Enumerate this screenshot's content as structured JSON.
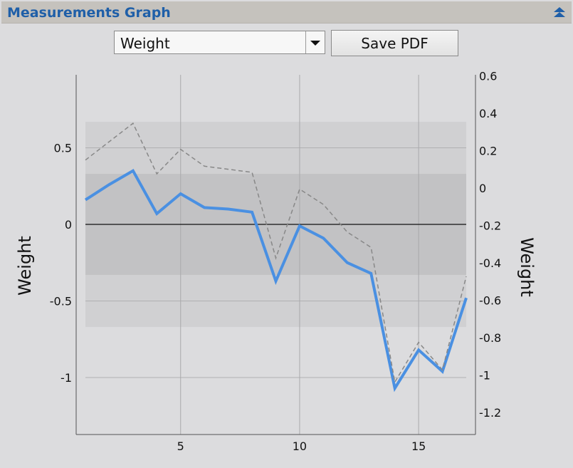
{
  "header": {
    "title": "Measurements Graph",
    "collapse_icon": "double-chevron-up-icon"
  },
  "controls": {
    "selected": "Weight",
    "dropdown_icon": "triangle-down-icon",
    "save_label": "Save PDF"
  },
  "colors": {
    "accent": "#1f5fa8",
    "series": "#4a90e2",
    "dashed": "#888888"
  },
  "chart_data": {
    "type": "line",
    "left_axis": {
      "label": "Weight",
      "ticks": [
        0.5,
        0,
        -0.5,
        -1
      ],
      "tick_labels": [
        "0.5",
        "0",
        "-0.5",
        "-1"
      ]
    },
    "right_axis": {
      "label": "Weight",
      "ticks": [
        0.6,
        0.4,
        0.2,
        0,
        -0.2,
        -0.4,
        -0.6,
        -0.8,
        -1,
        -1.2
      ],
      "tick_labels": [
        "0.6",
        "0.4",
        "0.2",
        "0",
        "-0.2",
        "-0.4",
        "-0.6",
        "-0.8",
        "-1",
        "-1.2"
      ]
    },
    "x_axis": {
      "ticks": [
        5,
        10,
        15
      ],
      "tick_labels": [
        "5",
        "10",
        "15"
      ]
    },
    "xlim": [
      0.6,
      17.4
    ],
    "ylim": [
      -1.37,
      0.97
    ],
    "grid": true,
    "bands": [
      {
        "from": -0.67,
        "to": 0.67,
        "color": "#d0d0d2"
      },
      {
        "from": -0.33,
        "to": 0.33,
        "color": "#c2c2c4"
      }
    ],
    "series": [
      {
        "style": "solid",
        "x": [
          1,
          2,
          3,
          4,
          5,
          6,
          7,
          8,
          9,
          10,
          11,
          12,
          13,
          14,
          15,
          16,
          17
        ],
        "y": [
          0.16,
          0.26,
          0.35,
          0.07,
          0.2,
          0.11,
          0.1,
          0.08,
          -0.37,
          -0.01,
          -0.09,
          -0.25,
          -0.32,
          -1.07,
          -0.82,
          -0.96,
          -0.48
        ]
      },
      {
        "style": "dashed",
        "x": [
          1,
          2,
          3,
          4,
          5,
          6,
          7,
          8,
          9,
          10,
          11,
          12,
          13,
          14,
          15,
          16,
          17
        ],
        "y": [
          0.42,
          0.54,
          0.66,
          0.33,
          0.49,
          0.38,
          0.36,
          0.34,
          -0.22,
          0.23,
          0.13,
          -0.05,
          -0.15,
          -1.03,
          -0.77,
          -0.95,
          -0.34
        ]
      }
    ]
  }
}
